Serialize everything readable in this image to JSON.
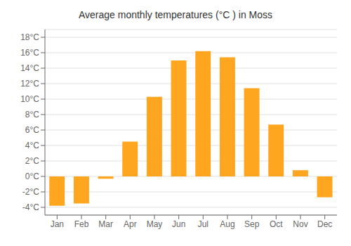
{
  "chart_data": {
    "type": "bar",
    "title": "Average monthly temperatures (°C ) in Moss",
    "categories": [
      "Jan",
      "Feb",
      "Mar",
      "Apr",
      "May",
      "Jun",
      "Jul",
      "Aug",
      "Sep",
      "Oct",
      "Nov",
      "Dec"
    ],
    "values": [
      -3.8,
      -3.5,
      -0.3,
      4.5,
      10.3,
      15.0,
      16.2,
      15.4,
      11.4,
      6.7,
      0.8,
      -2.7
    ],
    "color": "#FFA620",
    "ylim": [
      -5,
      19
    ],
    "yticks": [
      {
        "value": -4,
        "label": "-4°C"
      },
      {
        "value": -2,
        "label": "-2°C"
      },
      {
        "value": 0,
        "label": "0°C"
      },
      {
        "value": 2,
        "label": "2°C"
      },
      {
        "value": 4,
        "label": "4°C"
      },
      {
        "value": 6,
        "label": "6°C"
      },
      {
        "value": 8,
        "label": "8°C"
      },
      {
        "value": 10,
        "label": "10°C"
      },
      {
        "value": 12,
        "label": "12°C"
      },
      {
        "value": 14,
        "label": "14°C"
      },
      {
        "value": 16,
        "label": "16°C"
      },
      {
        "value": 18,
        "label": "18°C"
      }
    ],
    "grid": true
  }
}
